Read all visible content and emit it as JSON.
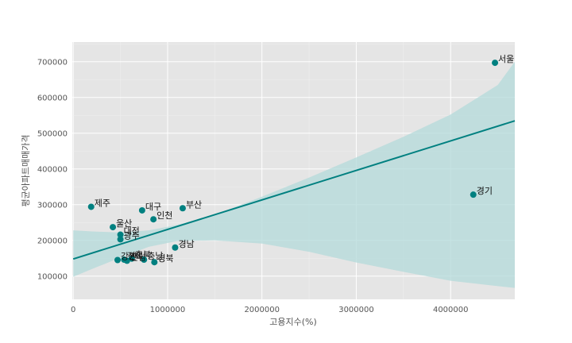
{
  "chart_data": {
    "type": "scatter",
    "title": "",
    "xlabel": "고용지수(%)",
    "ylabel": "평균아파트매매가격",
    "xlim": [
      -10000,
      4680000
    ],
    "ylim": [
      35000,
      755000
    ],
    "xticks": [
      0,
      1000000,
      2000000,
      3000000,
      4000000
    ],
    "xtick_labels": [
      "0",
      "1000000",
      "2000000",
      "3000000",
      "4000000"
    ],
    "yticks": [
      100000,
      200000,
      300000,
      400000,
      500000,
      600000,
      700000
    ],
    "ytick_labels": [
      "100000",
      "200000",
      "300000",
      "400000",
      "500000",
      "600000",
      "700000"
    ],
    "grid": true,
    "point_color": "#008080",
    "regression": {
      "intercept": 148000,
      "slope": 0.0826,
      "color": "#008080",
      "ci_color": "#b3d9d9"
    },
    "ci_band": {
      "x": [
        0,
        200000,
        500000,
        800000,
        1100000,
        1500000,
        2000000,
        2500000,
        3000000,
        3500000,
        4000000,
        4500000,
        4680000
      ],
      "upper": [
        228000,
        225000,
        222000,
        228000,
        243000,
        272000,
        322000,
        376000,
        432000,
        490000,
        552000,
        635000,
        700000
      ],
      "lower": [
        98000,
        120000,
        152000,
        182000,
        198000,
        200000,
        191000,
        168000,
        138000,
        112000,
        87000,
        72000,
        67000
      ]
    },
    "points": [
      {
        "name": "서울",
        "x": 4470000,
        "y": 697000
      },
      {
        "name": "경기",
        "x": 4240000,
        "y": 328000
      },
      {
        "name": "부산",
        "x": 1160000,
        "y": 290000
      },
      {
        "name": "대구",
        "x": 730000,
        "y": 284000
      },
      {
        "name": "인천",
        "x": 850000,
        "y": 259000
      },
      {
        "name": "제주",
        "x": 190000,
        "y": 294000
      },
      {
        "name": "울산",
        "x": 420000,
        "y": 237000
      },
      {
        "name": "대전",
        "x": 500000,
        "y": 216000
      },
      {
        "name": "광주",
        "x": 500000,
        "y": 203000
      },
      {
        "name": "경남",
        "x": 1080000,
        "y": 180000
      },
      {
        "name": "강원",
        "x": 470000,
        "y": 145000
      },
      {
        "name": "전북",
        "x": 540000,
        "y": 146000
      },
      {
        "name": "전남",
        "x": 570000,
        "y": 143000
      },
      {
        "name": "충북",
        "x": 620000,
        "y": 149000
      },
      {
        "name": "충남",
        "x": 750000,
        "y": 146000
      },
      {
        "name": "경북",
        "x": 860000,
        "y": 139000
      }
    ]
  }
}
